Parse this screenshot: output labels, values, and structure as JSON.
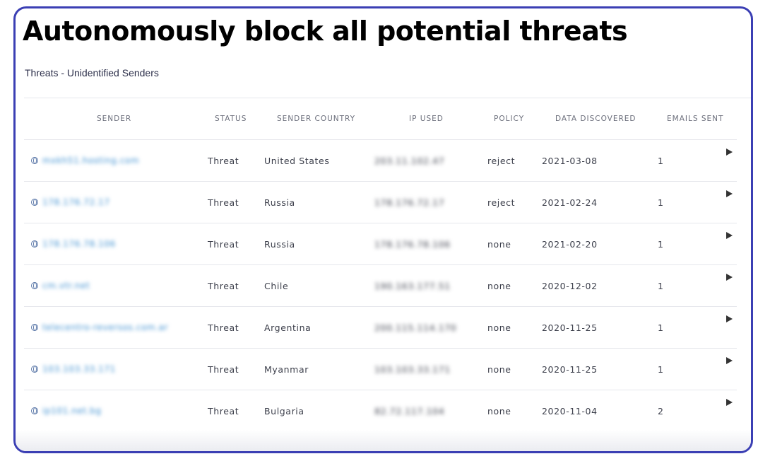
{
  "headline": "Autonomously block all potential threats",
  "subtitle": "Threats - Unidentified Senders",
  "columns": [
    "SENDER",
    "STATUS",
    "SENDER COUNTRY",
    "IP USED",
    "POLICY",
    "DATA DISCOVERED",
    "EMAILS SENT"
  ],
  "rows": [
    {
      "sender": "mxkh51.hosting.com",
      "status": "Threat",
      "country": "United States",
      "ip": "203.11.102.47",
      "policy": "reject",
      "date": "2021-03-08",
      "emails": "1"
    },
    {
      "sender": "178.176.72.17",
      "status": "Threat",
      "country": "Russia",
      "ip": "178.176.72.17",
      "policy": "reject",
      "date": "2021-02-24",
      "emails": "1"
    },
    {
      "sender": "178.176.78.106",
      "status": "Threat",
      "country": "Russia",
      "ip": "178.176.78.106",
      "policy": "none",
      "date": "2021-02-20",
      "emails": "1"
    },
    {
      "sender": "cm.vtr.net",
      "status": "Threat",
      "country": "Chile",
      "ip": "190.163.177.51",
      "policy": "none",
      "date": "2020-12-02",
      "emails": "1"
    },
    {
      "sender": "telecentro-reversos.com.ar",
      "status": "Threat",
      "country": "Argentina",
      "ip": "200.115.114.170",
      "policy": "none",
      "date": "2020-11-25",
      "emails": "1"
    },
    {
      "sender": "103.103.33.171",
      "status": "Threat",
      "country": "Myanmar",
      "ip": "103.103.33.171",
      "policy": "none",
      "date": "2020-11-25",
      "emails": "1"
    },
    {
      "sender": "ip101.net.bg",
      "status": "Threat",
      "country": "Bulgaria",
      "ip": "82.72.117.104",
      "policy": "none",
      "date": "2020-11-04",
      "emails": "2"
    }
  ]
}
